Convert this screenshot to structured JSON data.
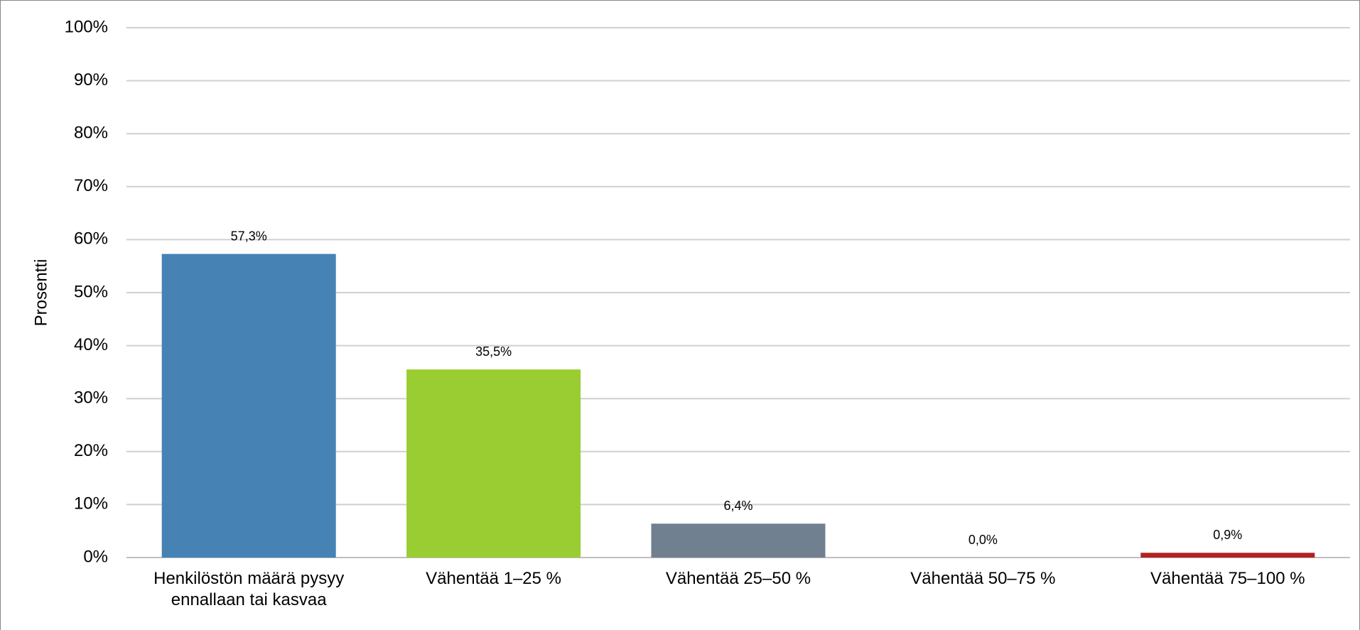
{
  "chart_data": {
    "type": "bar",
    "y_label": "Prosentti",
    "categories": [
      "Henkilöstön määrä pysyy ennallaan tai kasvaa",
      "Vähentää 1–25 %",
      "Vähentää 25–50 %",
      "Vähentää 50–75 %",
      "Vähentää 75–100 %"
    ],
    "values": [
      57.3,
      35.5,
      6.4,
      0.0,
      0.9
    ],
    "value_labels": [
      "57,3%",
      "35,5%",
      "6,4%",
      "0,0%",
      "0,9%"
    ],
    "colors": [
      "#4682b4",
      "#9acd32",
      "#708090",
      "#ffa500",
      "#b22222"
    ],
    "ylim": [
      0,
      100
    ],
    "yticks": [
      {
        "value": 0,
        "label": "0%"
      },
      {
        "value": 10,
        "label": "10%"
      },
      {
        "value": 20,
        "label": "20%"
      },
      {
        "value": 30,
        "label": "30%"
      },
      {
        "value": 40,
        "label": "40%"
      },
      {
        "value": 50,
        "label": "50%"
      },
      {
        "value": 60,
        "label": "60%"
      },
      {
        "value": 70,
        "label": "70%"
      },
      {
        "value": 80,
        "label": "80%"
      },
      {
        "value": 90,
        "label": "90%"
      },
      {
        "value": 100,
        "label": "100%"
      }
    ],
    "grid": true
  }
}
